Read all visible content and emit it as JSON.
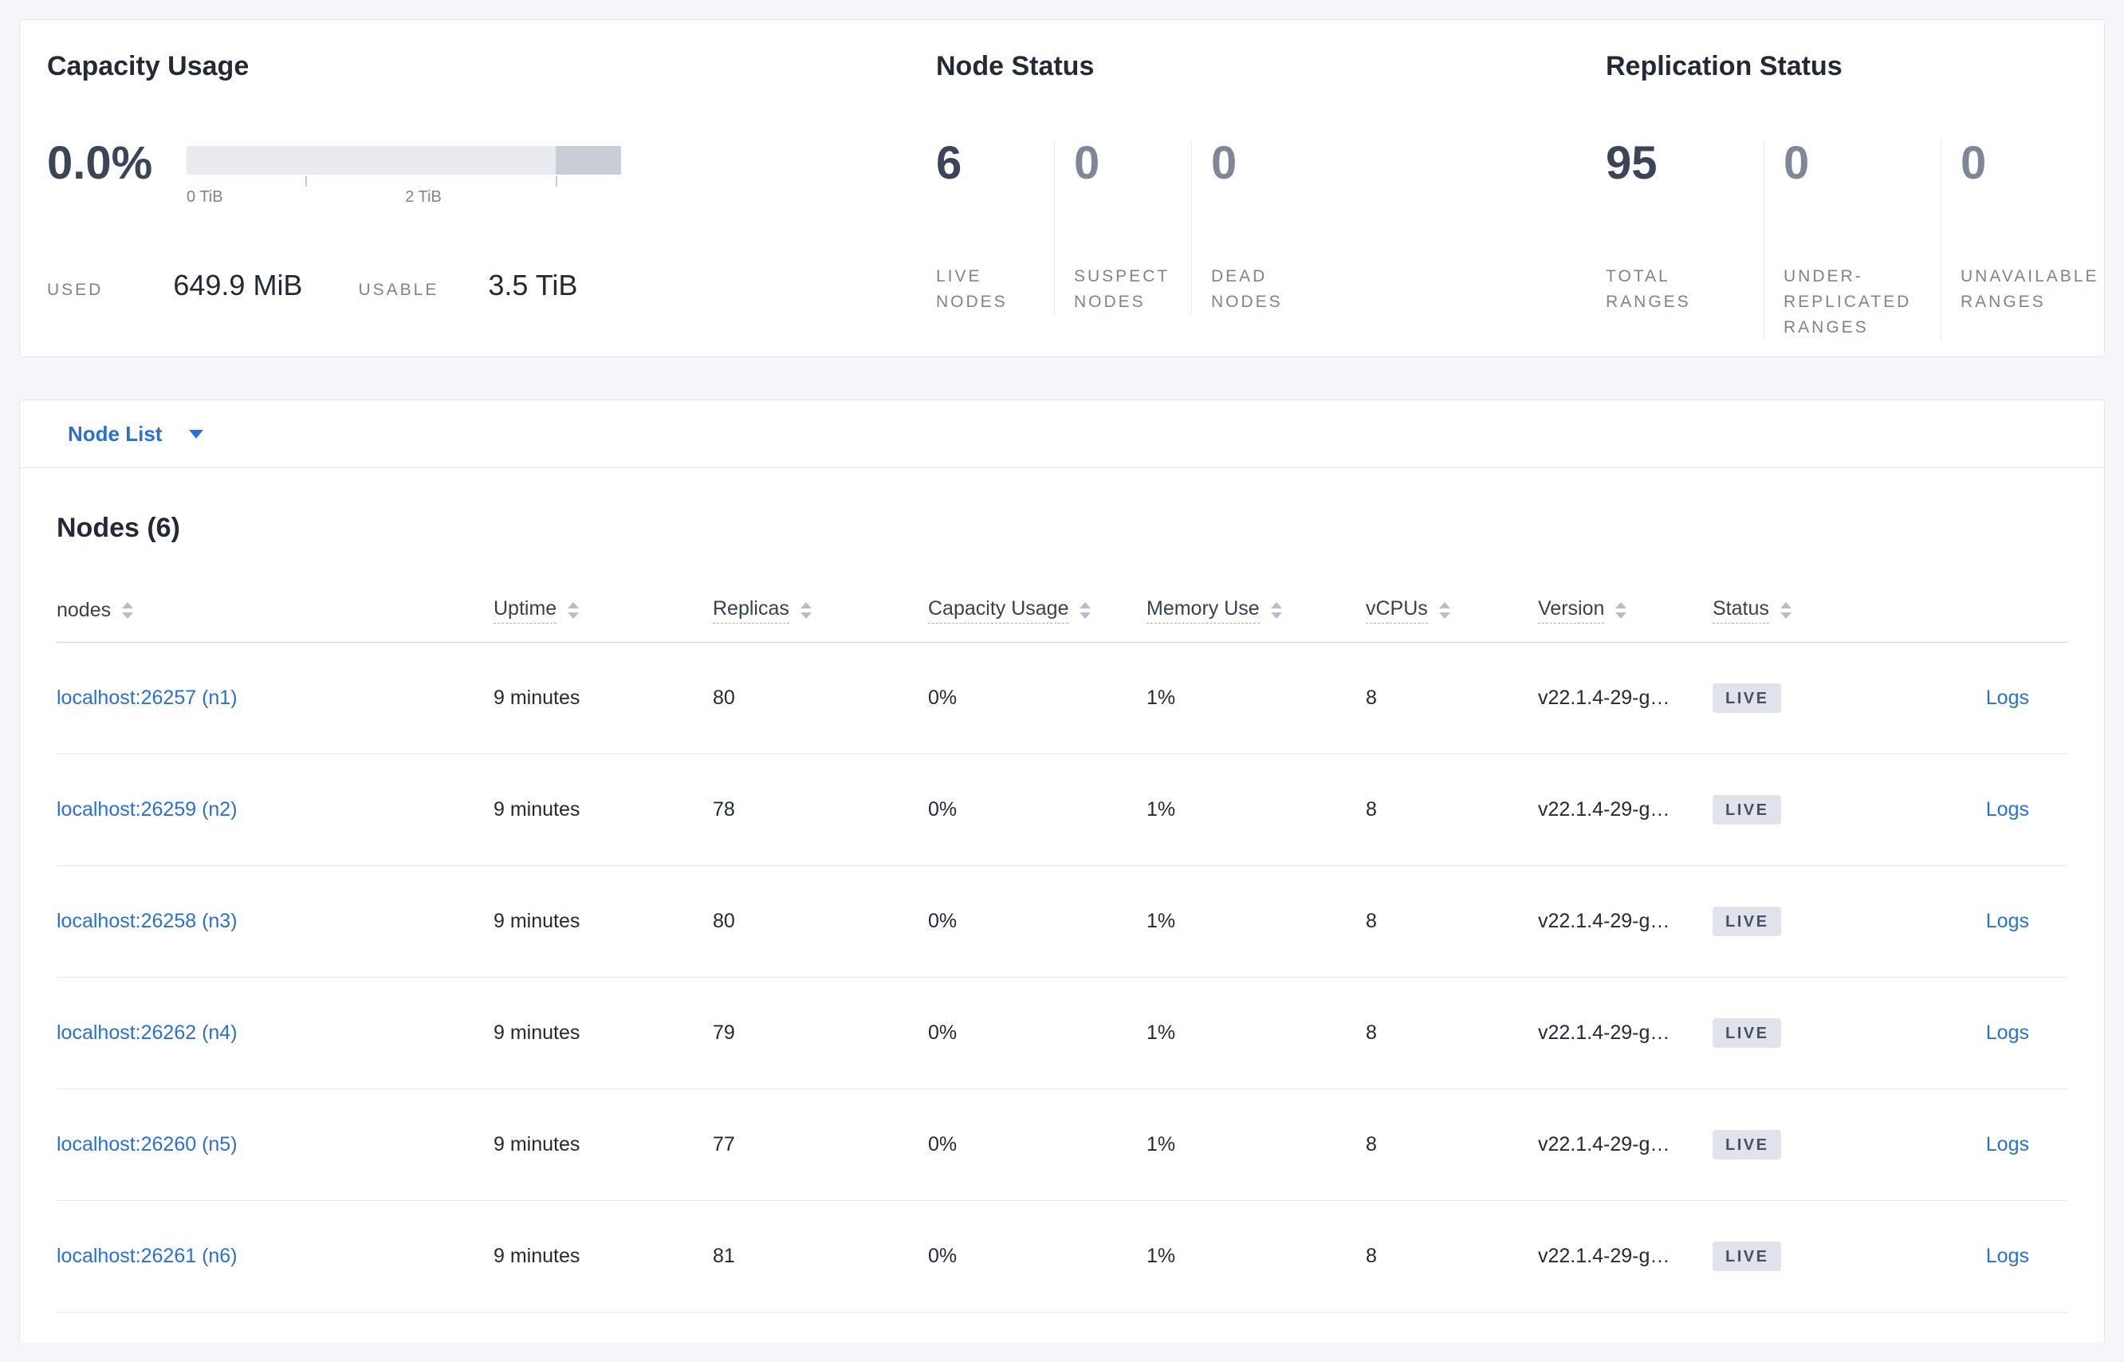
{
  "colors": {
    "accent_blue": "#2a6fd6",
    "dark_number": "#3c4558",
    "muted_number": "#7e8698",
    "live_badge_bg": "#e0e4ea",
    "live_badge_text": "#475166"
  },
  "summary": {
    "capacity": {
      "title": "Capacity Usage",
      "percent": "0.0%",
      "axis_ticks": [
        "0 TiB",
        "2 TiB"
      ],
      "used_label": "USED",
      "used_value": "649.9 MiB",
      "usable_label": "USABLE",
      "usable_value": "3.5 TiB"
    },
    "node_status": {
      "title": "Node Status",
      "stats": [
        {
          "value": "6",
          "label": "LIVE NODES"
        },
        {
          "value": "0",
          "label": "SUSPECT NODES"
        },
        {
          "value": "0",
          "label": "DEAD NODES"
        }
      ]
    },
    "replication": {
      "title": "Replication Status",
      "stats": [
        {
          "value": "95",
          "label": "TOTAL RANGES"
        },
        {
          "value": "0",
          "label": "UNDER-REPLICATED RANGES"
        },
        {
          "value": "0",
          "label": "UNAVAILABLE RANGES"
        }
      ]
    }
  },
  "node_list": {
    "dropdown_label": "Node List"
  },
  "nodes_table": {
    "title": "Nodes (6)",
    "columns": [
      "nodes",
      "Uptime",
      "Replicas",
      "Capacity Usage",
      "Memory Use",
      "vCPUs",
      "Version",
      "Status"
    ],
    "rows": [
      {
        "node": "localhost:26257 (n1)",
        "uptime": "9 minutes",
        "replicas": "80",
        "capacity": "0%",
        "memory": "1%",
        "vcpus": "8",
        "version": "v22.1.4-29-g…",
        "status": "LIVE",
        "logs": "Logs"
      },
      {
        "node": "localhost:26259 (n2)",
        "uptime": "9 minutes",
        "replicas": "78",
        "capacity": "0%",
        "memory": "1%",
        "vcpus": "8",
        "version": "v22.1.4-29-g…",
        "status": "LIVE",
        "logs": "Logs"
      },
      {
        "node": "localhost:26258 (n3)",
        "uptime": "9 minutes",
        "replicas": "80",
        "capacity": "0%",
        "memory": "1%",
        "vcpus": "8",
        "version": "v22.1.4-29-g…",
        "status": "LIVE",
        "logs": "Logs"
      },
      {
        "node": "localhost:26262 (n4)",
        "uptime": "9 minutes",
        "replicas": "79",
        "capacity": "0%",
        "memory": "1%",
        "vcpus": "8",
        "version": "v22.1.4-29-g…",
        "status": "LIVE",
        "logs": "Logs"
      },
      {
        "node": "localhost:26260 (n5)",
        "uptime": "9 minutes",
        "replicas": "77",
        "capacity": "0%",
        "memory": "1%",
        "vcpus": "8",
        "version": "v22.1.4-29-g…",
        "status": "LIVE",
        "logs": "Logs"
      },
      {
        "node": "localhost:26261 (n6)",
        "uptime": "9 minutes",
        "replicas": "81",
        "capacity": "0%",
        "memory": "1%",
        "vcpus": "8",
        "version": "v22.1.4-29-g…",
        "status": "LIVE",
        "logs": "Logs"
      }
    ]
  }
}
